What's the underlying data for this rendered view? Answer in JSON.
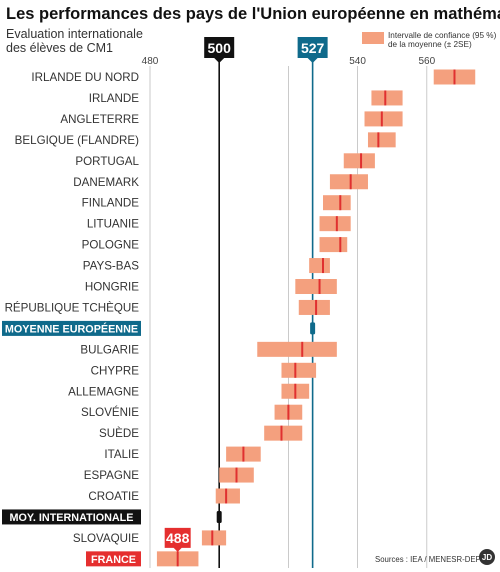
{
  "chart_data": {
    "type": "interval",
    "title": "Les performances des pays de l'Union européenne en mathématiques",
    "subtitle_lines": [
      "Evaluation internationale",
      "des élèves de CM1"
    ],
    "x_ticks": [
      480,
      500,
      520,
      527,
      540,
      560
    ],
    "x_tick_labels": [
      "480",
      "",
      "",
      "",
      "540",
      "560"
    ],
    "xlim": [
      475,
      575
    ],
    "legend": {
      "lines": [
        "Intervalle de confiance (95 %)",
        "de la moyenne (± 2SE)"
      ],
      "position": "top-right"
    },
    "reference_lines": [
      {
        "name": "moy-internationale",
        "value": 500,
        "label": "500",
        "color": "#111111"
      },
      {
        "name": "moyenne-europeenne",
        "value": 527,
        "label": "527",
        "color": "#0f6a8b"
      }
    ],
    "rows": [
      {
        "label": "IRLANDE DU NORD",
        "low": 562,
        "mean": 568,
        "high": 574
      },
      {
        "label": "IRLANDE",
        "low": 544,
        "mean": 548,
        "high": 553
      },
      {
        "label": "ANGLETERRE",
        "low": 542,
        "mean": 547,
        "high": 553
      },
      {
        "label": "BELGIQUE (FLANDRE)",
        "low": 543,
        "mean": 546,
        "high": 551
      },
      {
        "label": "PORTUGAL",
        "low": 536,
        "mean": 541,
        "high": 545
      },
      {
        "label": "DANEMARK",
        "low": 532,
        "mean": 538,
        "high": 543
      },
      {
        "label": "FINLANDE",
        "low": 530,
        "mean": 535,
        "high": 538
      },
      {
        "label": "LITUANIE",
        "low": 529,
        "mean": 534,
        "high": 538
      },
      {
        "label": "POLOGNE",
        "low": 529,
        "mean": 535,
        "high": 537
      },
      {
        "label": "PAYS-BAS",
        "low": 526,
        "mean": 530,
        "high": 532
      },
      {
        "label": "HONGRIE",
        "low": 522,
        "mean": 529,
        "high": 534
      },
      {
        "label": "RÉPUBLIQUE TCHÈQUE",
        "low": 523,
        "mean": 528,
        "high": 532
      },
      {
        "label": "MOYENNE EUROPÉENNE",
        "low": 526.5,
        "mean": 527,
        "high": 527.5,
        "highlight": "blue"
      },
      {
        "label": "BULGARIE",
        "low": 511,
        "mean": 524,
        "high": 534
      },
      {
        "label": "CHYPRE",
        "low": 518,
        "mean": 522,
        "high": 528
      },
      {
        "label": "ALLEMAGNE",
        "low": 518,
        "mean": 522,
        "high": 526
      },
      {
        "label": "SLOVÉNIE",
        "low": 516,
        "mean": 520,
        "high": 524
      },
      {
        "label": "SUÈDE",
        "low": 513,
        "mean": 518,
        "high": 524
      },
      {
        "label": "ITALIE",
        "low": 502,
        "mean": 507,
        "high": 512
      },
      {
        "label": "ESPAGNE",
        "low": 500,
        "mean": 505,
        "high": 510
      },
      {
        "label": "CROATIE",
        "low": 499,
        "mean": 502,
        "high": 506
      },
      {
        "label": "MOY. INTERNATIONALE",
        "low": 499.5,
        "mean": 500,
        "high": 500.5,
        "highlight": "black"
      },
      {
        "label": "SLOVAQUIE",
        "low": 495,
        "mean": 498,
        "high": 502
      },
      {
        "label": "FRANCE",
        "low": 482,
        "mean": 488,
        "high": 494,
        "highlight": "red",
        "badge": "488"
      }
    ],
    "source": "Sources : IEA / MENESR-DEPP",
    "logo_text": "JD",
    "grid": true,
    "colors": {
      "interval": "#f4a07e",
      "mean_tick": "#e03030",
      "blue": "#0f6a8b",
      "black": "#111111",
      "red": "#e52f2f",
      "grid": "#bdbdbd"
    }
  }
}
